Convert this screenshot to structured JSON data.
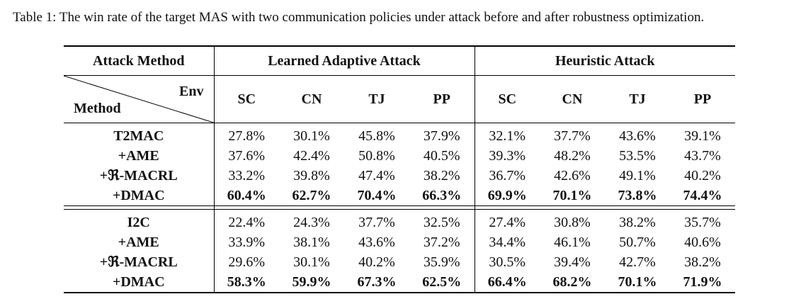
{
  "caption": "Table 1: The win rate of the target MAS with two communication policies under attack before and after robustness optimization.",
  "header": {
    "attack_method": "Attack Method",
    "group1": "Learned Adaptive Attack",
    "group2": "Heuristic Attack",
    "env": "Env",
    "method": "Method",
    "envs": [
      "SC",
      "CN",
      "TJ",
      "PP",
      "SC",
      "CN",
      "TJ",
      "PP"
    ]
  },
  "blocks": [
    {
      "rows": [
        {
          "method": "T2MAC",
          "values": [
            "27.8%",
            "30.1%",
            "45.8%",
            "37.9%",
            "32.1%",
            "37.7%",
            "43.6%",
            "39.1%"
          ],
          "bold": false
        },
        {
          "method": "+AME",
          "values": [
            "37.6%",
            "42.4%",
            "50.8%",
            "40.5%",
            "39.3%",
            "48.2%",
            "53.5%",
            "43.7%"
          ],
          "bold": false
        },
        {
          "method": "+ℜ-MACRL",
          "values": [
            "33.2%",
            "39.8%",
            "47.4%",
            "38.2%",
            "36.7%",
            "42.6%",
            "49.1%",
            "40.2%"
          ],
          "bold": false
        },
        {
          "method": "+DMAC",
          "values": [
            "60.4%",
            "62.7%",
            "70.4%",
            "66.3%",
            "69.9%",
            "70.1%",
            "73.8%",
            "74.4%"
          ],
          "bold": true
        }
      ]
    },
    {
      "rows": [
        {
          "method": "I2C",
          "values": [
            "22.4%",
            "24.3%",
            "37.7%",
            "32.5%",
            "27.4%",
            "30.8%",
            "38.2%",
            "35.7%"
          ],
          "bold": false
        },
        {
          "method": "+AME",
          "values": [
            "33.9%",
            "38.1%",
            "43.6%",
            "37.2%",
            "34.4%",
            "46.1%",
            "50.7%",
            "40.6%"
          ],
          "bold": false
        },
        {
          "method": "+ℜ-MACRL",
          "values": [
            "29.6%",
            "30.1%",
            "40.2%",
            "35.9%",
            "30.5%",
            "39.4%",
            "42.7%",
            "38.2%"
          ],
          "bold": false
        },
        {
          "method": "+DMAC",
          "values": [
            "58.3%",
            "59.9%",
            "67.3%",
            "62.5%",
            "66.4%",
            "68.2%",
            "70.1%",
            "71.9%"
          ],
          "bold": true
        }
      ]
    }
  ]
}
